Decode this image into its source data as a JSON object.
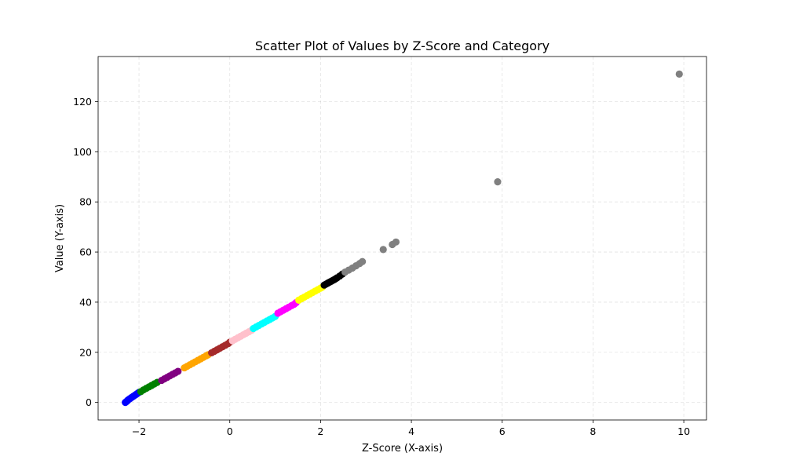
{
  "chart_data": {
    "type": "scatter",
    "title": "Scatter Plot of Values by Z-Score and Category",
    "xlabel": "Z-Score (X-axis)",
    "ylabel": "Value (Y-axis)",
    "xlim": [
      -2.9,
      10.5
    ],
    "ylim": [
      -7,
      138
    ],
    "xticks": [
      -2,
      0,
      2,
      4,
      6,
      8,
      10
    ],
    "yticks": [
      0,
      20,
      40,
      60,
      80,
      100,
      120
    ],
    "xtick_labels": [
      "−2",
      "0",
      "2",
      "4",
      "6",
      "8",
      "10"
    ],
    "ytick_labels": [
      "0",
      "20",
      "40",
      "60",
      "80",
      "100",
      "120"
    ],
    "grid": true,
    "groups": [
      {
        "color": "#0000ff",
        "points": [
          [
            -2.3,
            0
          ],
          [
            -2.28,
            0.3
          ],
          [
            -2.26,
            0.6
          ],
          [
            -2.24,
            1
          ],
          [
            -2.2,
            1.5
          ],
          [
            -2.16,
            2
          ],
          [
            -2.12,
            2.5
          ],
          [
            -2.08,
            3
          ],
          [
            -2.04,
            3.5
          ],
          [
            -2.0,
            4
          ]
        ]
      },
      {
        "color": "#008000",
        "points": [
          [
            -1.96,
            4.3
          ],
          [
            -1.9,
            5
          ],
          [
            -1.84,
            5.6
          ],
          [
            -1.78,
            6.2
          ],
          [
            -1.72,
            6.8
          ],
          [
            -1.66,
            7.4
          ],
          [
            -1.6,
            8
          ]
        ]
      },
      {
        "color": "#800080",
        "points": [
          [
            -1.5,
            8.8
          ],
          [
            -1.44,
            9.4
          ],
          [
            -1.38,
            10
          ],
          [
            -1.32,
            10.6
          ],
          [
            -1.26,
            11.2
          ],
          [
            -1.2,
            11.8
          ],
          [
            -1.14,
            12.4
          ]
        ]
      },
      {
        "color": "#ffa500",
        "points": [
          [
            -1.0,
            13.8
          ],
          [
            -0.94,
            14.4
          ],
          [
            -0.88,
            15
          ],
          [
            -0.82,
            15.6
          ],
          [
            -0.76,
            16.2
          ],
          [
            -0.7,
            16.8
          ],
          [
            -0.64,
            17.4
          ],
          [
            -0.58,
            18
          ],
          [
            -0.52,
            18.6
          ],
          [
            -0.48,
            19
          ]
        ]
      },
      {
        "color": "#a52a2a",
        "points": [
          [
            -0.4,
            19.8
          ],
          [
            -0.34,
            20.4
          ],
          [
            -0.28,
            21
          ],
          [
            -0.22,
            21.6
          ],
          [
            -0.16,
            22.2
          ],
          [
            -0.1,
            22.8
          ],
          [
            -0.04,
            23.4
          ],
          [
            0.0,
            24
          ]
        ]
      },
      {
        "color": "#ffc0cb",
        "points": [
          [
            0.06,
            24.6
          ],
          [
            0.12,
            25.2
          ],
          [
            0.18,
            25.8
          ],
          [
            0.24,
            26.4
          ],
          [
            0.3,
            27
          ],
          [
            0.36,
            27.6
          ],
          [
            0.42,
            28.2
          ],
          [
            0.48,
            28.8
          ]
        ]
      },
      {
        "color": "#00ffff",
        "points": [
          [
            0.52,
            29.5
          ],
          [
            0.58,
            30.1
          ],
          [
            0.64,
            30.7
          ],
          [
            0.7,
            31.3
          ],
          [
            0.76,
            31.9
          ],
          [
            0.82,
            32.5
          ],
          [
            0.88,
            33.1
          ],
          [
            0.94,
            33.7
          ],
          [
            1.0,
            34.3
          ]
        ]
      },
      {
        "color": "#ff00ff",
        "points": [
          [
            1.06,
            35.6
          ],
          [
            1.12,
            36.2
          ],
          [
            1.18,
            36.8
          ],
          [
            1.24,
            37.4
          ],
          [
            1.3,
            38
          ],
          [
            1.36,
            38.6
          ],
          [
            1.42,
            39.2
          ],
          [
            1.46,
            39.8
          ]
        ]
      },
      {
        "color": "#ffff00",
        "points": [
          [
            1.52,
            40.8
          ],
          [
            1.58,
            41.4
          ],
          [
            1.64,
            42
          ],
          [
            1.7,
            42.6
          ],
          [
            1.76,
            43.2
          ],
          [
            1.82,
            43.8
          ],
          [
            1.88,
            44.4
          ],
          [
            1.94,
            45
          ],
          [
            2.0,
            45.6
          ],
          [
            2.04,
            46
          ]
        ]
      },
      {
        "color": "#000000",
        "points": [
          [
            2.08,
            46.8
          ],
          [
            2.12,
            47.2
          ],
          [
            2.16,
            47.6
          ],
          [
            2.2,
            48
          ],
          [
            2.24,
            48.4
          ],
          [
            2.28,
            48.8
          ],
          [
            2.32,
            49.2
          ],
          [
            2.36,
            49.7
          ],
          [
            2.42,
            50.4
          ],
          [
            2.48,
            51.2
          ]
        ]
      },
      {
        "color": "#808080",
        "points": [
          [
            2.54,
            52
          ],
          [
            2.62,
            52.8
          ],
          [
            2.7,
            53.6
          ],
          [
            2.78,
            54.5
          ],
          [
            2.86,
            55.4
          ],
          [
            2.92,
            56.2
          ],
          [
            3.38,
            61
          ],
          [
            3.58,
            63
          ],
          [
            3.66,
            64
          ],
          [
            5.9,
            88
          ],
          [
            9.9,
            131
          ]
        ]
      }
    ]
  }
}
